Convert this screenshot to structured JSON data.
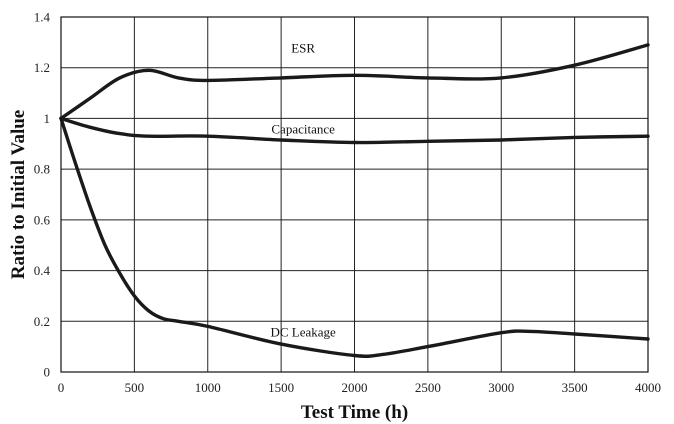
{
  "chart_data": {
    "type": "line",
    "title": "",
    "xlabel": "Test Time (h)",
    "ylabel": "Ratio to Initial Value",
    "xlim": [
      0,
      4000
    ],
    "ylim": [
      0,
      1.4
    ],
    "x_ticks": [
      0,
      500,
      1000,
      1500,
      2000,
      2500,
      3000,
      3500,
      4000
    ],
    "y_ticks": [
      0,
      0.2,
      0.4,
      0.6,
      0.8,
      1,
      1.2,
      1.4
    ],
    "y_tick_labels": [
      "0",
      "0.2",
      "0.4",
      "0.6",
      "0.8",
      "1",
      "1.2",
      "1.4"
    ],
    "grid": true,
    "legend": "none (series labelled directly on curves)",
    "series": [
      {
        "name": "ESR",
        "label_at": [
          1650,
          1.26
        ],
        "x": [
          0,
          200,
          400,
          600,
          800,
          1000,
          1500,
          2000,
          2500,
          3000,
          3500,
          4000
        ],
        "values": [
          1.0,
          1.08,
          1.16,
          1.19,
          1.16,
          1.15,
          1.16,
          1.17,
          1.16,
          1.16,
          1.21,
          1.29
        ]
      },
      {
        "name": "Capacitance",
        "label_at": [
          1650,
          0.94
        ],
        "x": [
          0,
          200,
          400,
          600,
          1000,
          1500,
          2000,
          2500,
          3000,
          3500,
          4000
        ],
        "values": [
          1.0,
          0.965,
          0.94,
          0.93,
          0.93,
          0.915,
          0.905,
          0.91,
          0.915,
          0.925,
          0.93
        ]
      },
      {
        "name": "DC Leakage",
        "label_at": [
          1650,
          0.14
        ],
        "x": [
          0,
          100,
          200,
          300,
          400,
          500,
          600,
          700,
          800,
          1000,
          1500,
          2000,
          2200,
          2500,
          3000,
          3200,
          3500,
          4000
        ],
        "values": [
          1.0,
          0.82,
          0.65,
          0.5,
          0.39,
          0.3,
          0.24,
          0.21,
          0.2,
          0.18,
          0.11,
          0.065,
          0.07,
          0.1,
          0.155,
          0.16,
          0.15,
          0.13
        ]
      }
    ]
  }
}
